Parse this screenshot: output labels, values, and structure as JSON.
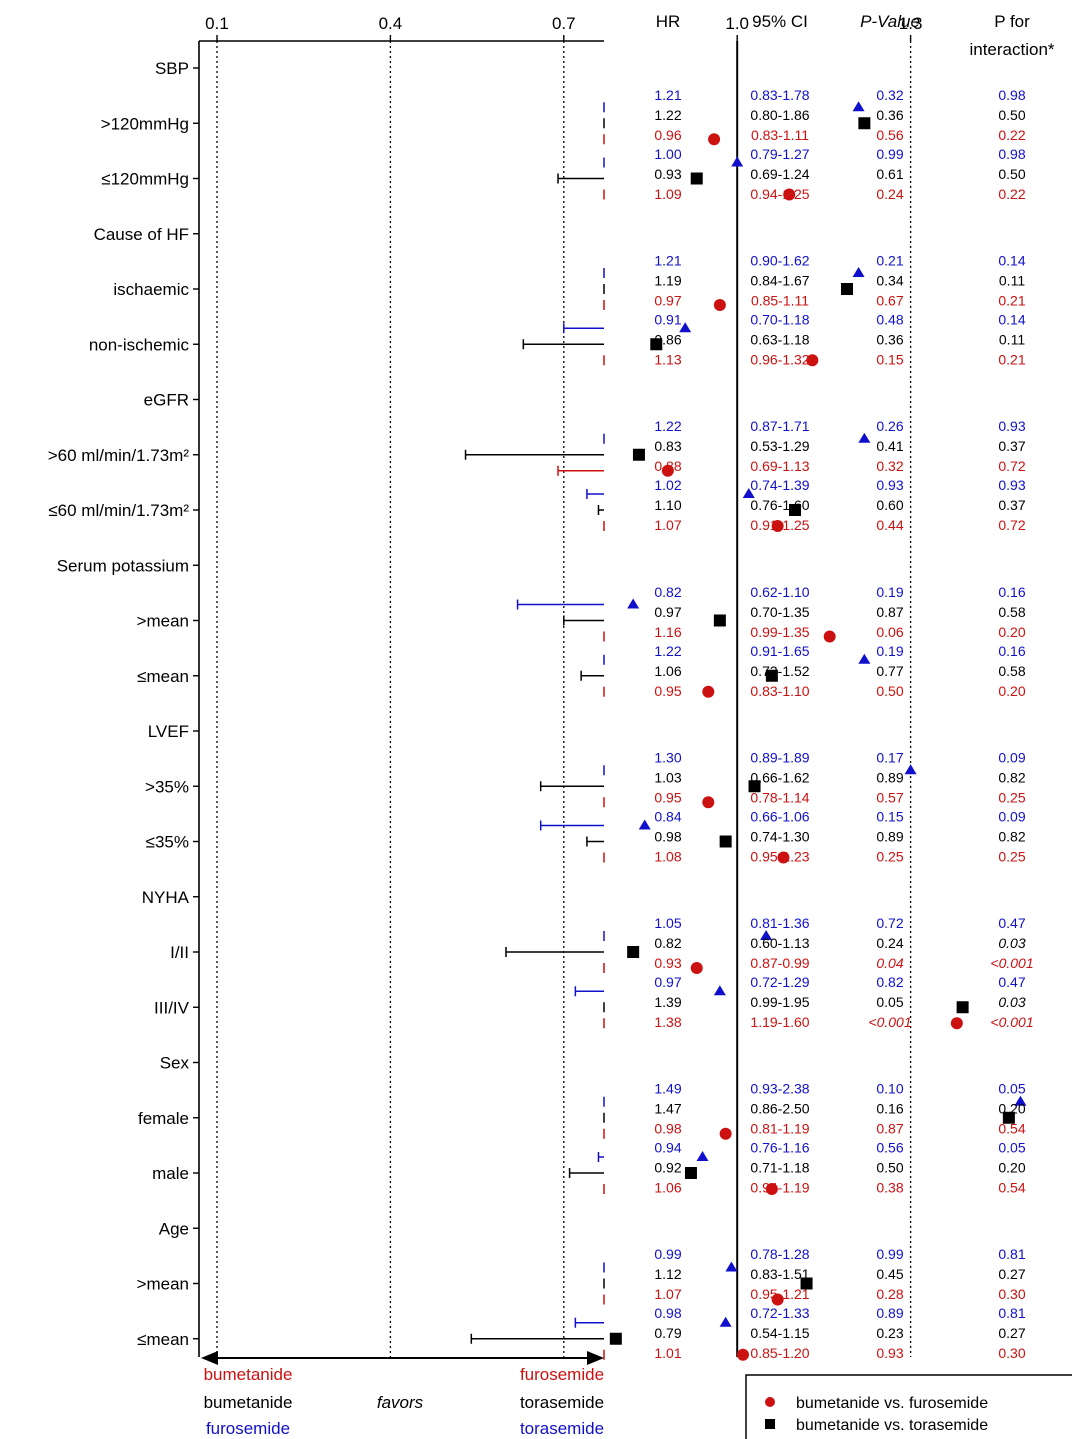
{
  "colors": {
    "furosemide_vs_torasemide": "#1010cc",
    "bumetanide_vs_torasemide": "#000000",
    "bumetanide_vs_furosemide": "#cc1111"
  },
  "table_headers": {
    "hr": "HR",
    "ci": "95% CI",
    "p_value": "P-Value",
    "p_interaction_line1": "P for",
    "p_interaction_line2": "interaction*"
  },
  "favors": {
    "left": [
      "bumetanide",
      "bumetanide",
      "furosemide"
    ],
    "middle": "favors",
    "right": [
      "furosemide",
      "torasemide",
      "torasemide"
    ]
  },
  "legend": [
    {
      "marker": "circle",
      "label": "bumetanide vs. furosemide",
      "color": "#000000"
    },
    {
      "marker": "square",
      "label": "bumetanide vs. torasemide",
      "color": "#000000"
    }
  ],
  "chart_data": {
    "type": "forest",
    "xticks": [
      "0.1",
      "0.4",
      "0.7",
      "1.0",
      "1.3",
      "1.6",
      "1.9"
    ],
    "xlim": [
      0.1,
      2.1
    ],
    "reference_line": 1.0,
    "series_order": [
      "furosemide_vs_torasemide",
      "bumetanide_vs_torasemide",
      "bumetanide_vs_furosemide"
    ],
    "series_markers": {
      "furosemide_vs_torasemide": "triangle",
      "bumetanide_vs_torasemide": "square",
      "bumetanide_vs_furosemide": "circle"
    },
    "groups": [
      {
        "header": "SBP",
        "subgroups": [
          {
            "label": ">120mmHg",
            "rows": [
              {
                "hr": "1.21",
                "ci": "0.83-1.78",
                "p": "0.32",
                "pint": "0.98"
              },
              {
                "hr": "1.22",
                "ci": "0.80-1.86",
                "p": "0.36",
                "pint": "0.50"
              },
              {
                "hr": "0.96",
                "ci": "0.83-1.11",
                "p": "0.56",
                "pint": "0.22"
              }
            ]
          },
          {
            "label": "≤120mmHg",
            "rows": [
              {
                "hr": "1.00",
                "ci": "0.79-1.27",
                "p": "0.99",
                "pint": "0.98"
              },
              {
                "hr": "0.93",
                "ci": "0.69-1.24",
                "p": "0.61",
                "pint": "0.50"
              },
              {
                "hr": "1.09",
                "ci": "0.94-1.25",
                "p": "0.24",
                "pint": "0.22"
              }
            ]
          }
        ]
      },
      {
        "header": "Cause of HF",
        "subgroups": [
          {
            "label": "ischaemic",
            "rows": [
              {
                "hr": "1.21",
                "ci": "0.90-1.62",
                "p": "0.21",
                "pint": "0.14"
              },
              {
                "hr": "1.19",
                "ci": "0.84-1.67",
                "p": "0.34",
                "pint": "0.11"
              },
              {
                "hr": "0.97",
                "ci": "0.85-1.11",
                "p": "0.67",
                "pint": "0.21"
              }
            ]
          },
          {
            "label": "non-ischemic",
            "rows": [
              {
                "hr": "0.91",
                "ci": "0.70-1.18",
                "p": "0.48",
                "pint": "0.14"
              },
              {
                "hr": "0.86",
                "ci": "0.63-1.18",
                "p": "0.36",
                "pint": "0.11"
              },
              {
                "hr": "1.13",
                "ci": "0.96-1.32",
                "p": "0.15",
                "pint": "0.21"
              }
            ]
          }
        ]
      },
      {
        "header": "eGFR",
        "subgroups": [
          {
            "label": ">60 ml/min/1.73m²",
            "rows": [
              {
                "hr": "1.22",
                "ci": "0.87-1.71",
                "p": "0.26",
                "pint": "0.93"
              },
              {
                "hr": "0.83",
                "ci": "0.53-1.29",
                "p": "0.41",
                "pint": "0.37"
              },
              {
                "hr": "0.88",
                "ci": "0.69-1.13",
                "p": "0.32",
                "pint": "0.72"
              }
            ]
          },
          {
            "label": "≤60 ml/min/1.73m²",
            "rows": [
              {
                "hr": "1.02",
                "ci": "0.74-1.39",
                "p": "0.93",
                "pint": "0.93"
              },
              {
                "hr": "1.10",
                "ci": "0.76-1.60",
                "p": "0.60",
                "pint": "0.37"
              },
              {
                "hr": "1.07",
                "ci": "0.91-1.25",
                "p": "0.44",
                "pint": "0.72"
              }
            ]
          }
        ]
      },
      {
        "header": "Serum potassium",
        "subgroups": [
          {
            "label": ">mean",
            "rows": [
              {
                "hr": "0.82",
                "ci": "0.62-1.10",
                "p": "0.19",
                "pint": "0.16"
              },
              {
                "hr": "0.97",
                "ci": "0.70-1.35",
                "p": "0.87",
                "pint": "0.58"
              },
              {
                "hr": "1.16",
                "ci": "0.99-1.35",
                "p": "0.06",
                "pint": "0.20"
              }
            ]
          },
          {
            "label": "≤mean",
            "rows": [
              {
                "hr": "1.22",
                "ci": "0.91-1.65",
                "p": "0.19",
                "pint": "0.16"
              },
              {
                "hr": "1.06",
                "ci": "0.73-1.52",
                "p": "0.77",
                "pint": "0.58"
              },
              {
                "hr": "0.95",
                "ci": "0.83-1.10",
                "p": "0.50",
                "pint": "0.20"
              }
            ]
          }
        ]
      },
      {
        "header": "LVEF",
        "subgroups": [
          {
            "label": ">35%",
            "rows": [
              {
                "hr": "1.30",
                "ci": "0.89-1.89",
                "p": "0.17",
                "pint": "0.09"
              },
              {
                "hr": "1.03",
                "ci": "0.66-1.62",
                "p": "0.89",
                "pint": "0.82"
              },
              {
                "hr": "0.95",
                "ci": "0.78-1.14",
                "p": "0.57",
                "pint": "0.25"
              }
            ]
          },
          {
            "label": "≤35%",
            "rows": [
              {
                "hr": "0.84",
                "ci": "0.66-1.06",
                "p": "0.15",
                "pint": "0.09"
              },
              {
                "hr": "0.98",
                "ci": "0.74-1.30",
                "p": "0.89",
                "pint": "0.82"
              },
              {
                "hr": "1.08",
                "ci": "0.95-1.23",
                "p": "0.25",
                "pint": "0.25"
              }
            ]
          }
        ]
      },
      {
        "header": "NYHA",
        "subgroups": [
          {
            "label": "I/II",
            "rows": [
              {
                "hr": "1.05",
                "ci": "0.81-1.36",
                "p": "0.72",
                "pint": "0.47"
              },
              {
                "hr": "0.82",
                "ci": "0.60-1.13",
                "p": "0.24",
                "pint": "0.03"
              },
              {
                "hr": "0.93",
                "ci": "0.87-0.99",
                "p": "0.04",
                "pint": "<0.001"
              }
            ]
          },
          {
            "label": "III/IV",
            "rows": [
              {
                "hr": "0.97",
                "ci": "0.72-1.29",
                "p": "0.82",
                "pint": "0.47"
              },
              {
                "hr": "1.39",
                "ci": "0.99-1.95",
                "p": "0.05",
                "pint": "0.03"
              },
              {
                "hr": "1.38",
                "ci": "1.19-1.60",
                "p": "<0.001",
                "pint": "<0.001"
              }
            ]
          }
        ]
      },
      {
        "header": "Sex",
        "subgroups": [
          {
            "label": "female",
            "rows": [
              {
                "hr": "1.49",
                "ci": "0.93-2.38",
                "p": "0.10",
                "pint": "0.05"
              },
              {
                "hr": "1.47",
                "ci": "0.86-2.50",
                "p": "0.16",
                "pint": "0.20"
              },
              {
                "hr": "0.98",
                "ci": "0.81-1.19",
                "p": "0.87",
                "pint": "0.54"
              }
            ]
          },
          {
            "label": "male",
            "rows": [
              {
                "hr": "0.94",
                "ci": "0.76-1.16",
                "p": "0.56",
                "pint": "0.05"
              },
              {
                "hr": "0.92",
                "ci": "0.71-1.18",
                "p": "0.50",
                "pint": "0.20"
              },
              {
                "hr": "1.06",
                "ci": "0.94-1.19",
                "p": "0.38",
                "pint": "0.54"
              }
            ]
          }
        ]
      },
      {
        "header": "Age",
        "subgroups": [
          {
            "label": ">mean",
            "rows": [
              {
                "hr": "0.99",
                "ci": "0.78-1.28",
                "p": "0.99",
                "pint": "0.81"
              },
              {
                "hr": "1.12",
                "ci": "0.83-1.51",
                "p": "0.45",
                "pint": "0.27"
              },
              {
                "hr": "1.07",
                "ci": "0.95-1.21",
                "p": "0.28",
                "pint": "0.30"
              }
            ]
          },
          {
            "label": "≤mean",
            "rows": [
              {
                "hr": "0.98",
                "ci": "0.72-1.33",
                "p": "0.89",
                "pint": "0.81"
              },
              {
                "hr": "0.79",
                "ci": "0.54-1.15",
                "p": "0.23",
                "pint": "0.27"
              },
              {
                "hr": "1.01",
                "ci": "0.85-1.20",
                "p": "0.93",
                "pint": "0.30"
              }
            ]
          }
        ]
      }
    ]
  }
}
